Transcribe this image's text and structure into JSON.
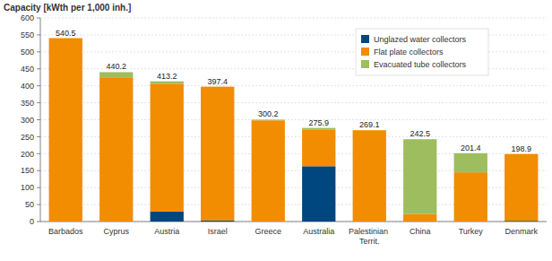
{
  "chart_data": {
    "type": "bar",
    "stacked": true,
    "title": "Capacity [kWth per 1,000 inh.]",
    "categories": [
      "Barbados",
      "Cyprus",
      "Austria",
      "Israel",
      "Greece",
      "Australia",
      "Palestinian Territ.",
      "China",
      "Turkey",
      "Denmark"
    ],
    "series": [
      {
        "name": "Unglazed water collectors",
        "color": "#00467f",
        "values": [
          0,
          0,
          30,
          3,
          0,
          163,
          0,
          0,
          0,
          2
        ]
      },
      {
        "name": "Flat plate collectors",
        "color": "#f28c00",
        "values": [
          540.5,
          425,
          375,
          394.4,
          298,
          107,
          269.1,
          22,
          145,
          196.9
        ]
      },
      {
        "name": "Evacuated tube collectors",
        "color": "#9ebd5e",
        "values": [
          0,
          15.2,
          8.2,
          0,
          2.2,
          5.9,
          0,
          220.5,
          56.4,
          0
        ]
      }
    ],
    "totals": [
      540.5,
      440.2,
      413.2,
      397.4,
      300.2,
      275.9,
      269.1,
      242.5,
      201.4,
      198.9
    ],
    "ylim": [
      0,
      600
    ],
    "yticks": [
      0,
      50,
      100,
      150,
      200,
      250,
      300,
      350,
      400,
      450,
      500,
      550,
      600
    ],
    "grid": true,
    "legend": "upper right"
  }
}
